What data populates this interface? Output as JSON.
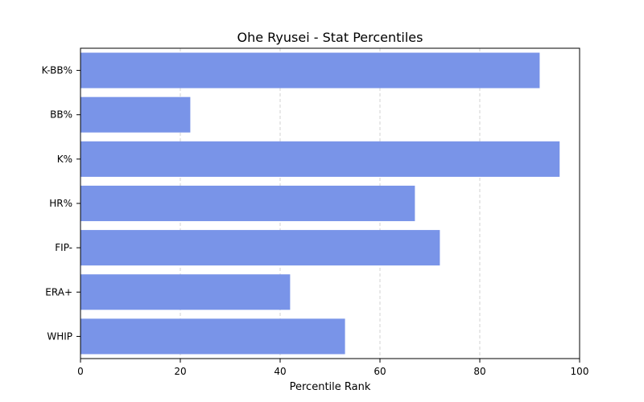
{
  "chart_data": {
    "type": "bar",
    "orientation": "horizontal",
    "title": "Ohe Ryusei - Stat Percentiles",
    "xlabel": "Percentile Rank",
    "ylabel": "",
    "categories": [
      "K-BB%",
      "BB%",
      "K%",
      "HR%",
      "FIP-",
      "ERA+",
      "WHIP"
    ],
    "values": [
      92,
      22,
      96,
      67,
      72,
      42,
      53
    ],
    "xlim": [
      0,
      100
    ],
    "xticks": [
      0,
      20,
      40,
      60,
      80,
      100
    ],
    "grid": "x, dashed",
    "bar_color": "#7994e8"
  }
}
